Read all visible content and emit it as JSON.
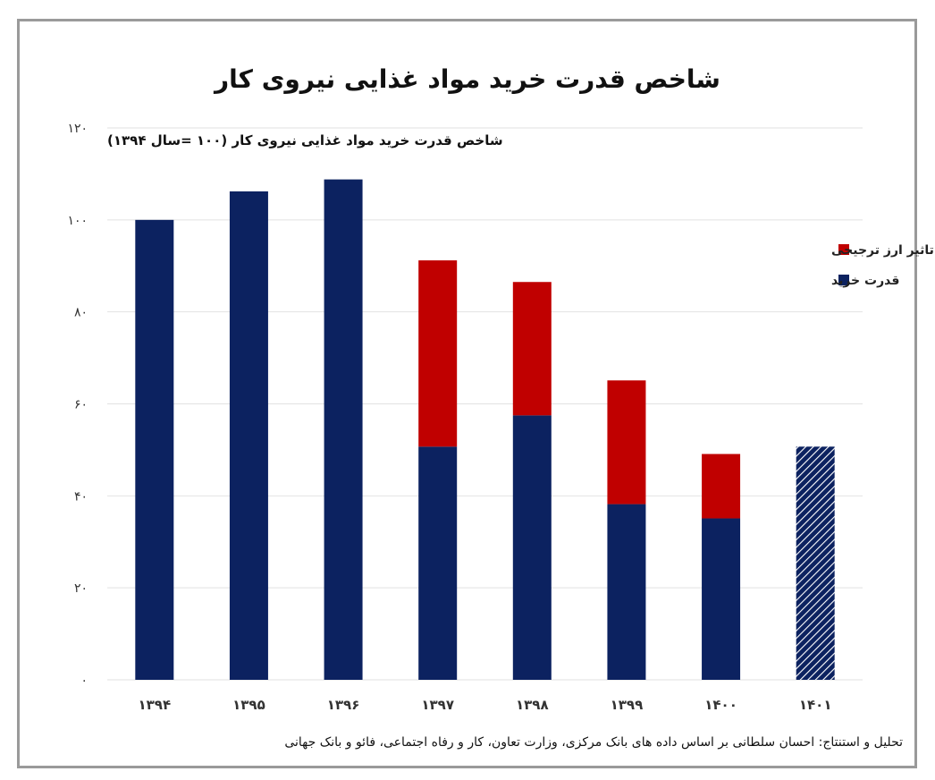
{
  "chart_data": {
    "type": "bar",
    "stacked": true,
    "title": "شاخص قدرت خرید مواد غذایی نیروی کار",
    "subtitle": "شاخص قدرت خرید مواد غذایی نیروی کار (۱۰۰ =سال ۱۳۹۴)",
    "source": "تحلیل و استنتاج: احسان سلطانی بر اساس داده های بانک مرکزی، وزارت تعاون، کار و رفاه اجتماعی، فائو و بانک جهانی",
    "categories": [
      "۱۳۹۴",
      "۱۳۹۵",
      "۱۳۹۶",
      "۱۳۹۷",
      "۱۳۹۸",
      "۱۳۹۹",
      "۱۴۰۰",
      "۱۴۰۱"
    ],
    "ylim": [
      0,
      120
    ],
    "yticks": [
      0,
      20,
      40,
      60,
      80,
      100,
      120
    ],
    "ytick_labels": [
      "۰",
      "۲۰",
      "۴۰",
      "۶۰",
      "۸۰",
      "۱۰۰",
      "۱۲۰"
    ],
    "grid": true,
    "legend_position": "right",
    "series": [
      {
        "name": "قدرت خرید",
        "color": "#0c2260",
        "values": [
          100,
          106.2,
          108.8,
          50.7,
          57.5,
          38.2,
          35.1,
          50.7
        ]
      },
      {
        "name": "تاثیر ارز ترجیحی",
        "color": "#c00000",
        "values": [
          0,
          0,
          0,
          40.5,
          29.0,
          26.9,
          14.0,
          0
        ]
      }
    ],
    "hatched_categories": [
      "۱۴۰۱"
    ]
  }
}
